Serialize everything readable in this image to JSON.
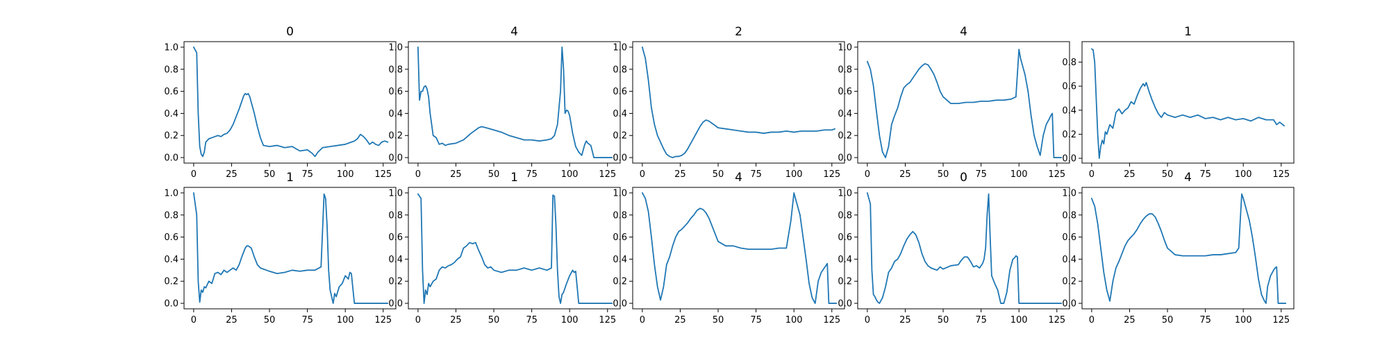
{
  "line_color": "#1f77b4",
  "chart_data": [
    {
      "type": "line",
      "title": "0",
      "xlim": [
        -6.35,
        133.35
      ],
      "ylim": [
        -0.05,
        1.05
      ],
      "xticks": [
        0,
        25,
        50,
        75,
        100,
        125
      ],
      "yticks": [
        0.0,
        0.2,
        0.4,
        0.6,
        0.8,
        1.0
      ],
      "x": [
        0,
        2,
        3,
        4,
        5,
        6,
        7,
        8,
        10,
        12,
        14,
        16,
        18,
        20,
        22,
        24,
        26,
        28,
        30,
        32,
        33,
        34,
        35,
        36,
        37,
        38,
        40,
        42,
        44,
        46,
        50,
        55,
        60,
        65,
        70,
        75,
        78,
        80,
        82,
        85,
        90,
        95,
        100,
        104,
        106,
        108,
        110,
        112,
        114,
        116,
        118,
        120,
        122,
        124,
        126,
        128
      ],
      "y": [
        1.0,
        0.95,
        0.4,
        0.1,
        0.03,
        0.01,
        0.05,
        0.14,
        0.17,
        0.18,
        0.19,
        0.2,
        0.19,
        0.21,
        0.22,
        0.25,
        0.3,
        0.37,
        0.44,
        0.52,
        0.56,
        0.58,
        0.57,
        0.58,
        0.55,
        0.5,
        0.4,
        0.28,
        0.18,
        0.11,
        0.1,
        0.11,
        0.09,
        0.1,
        0.06,
        0.07,
        0.04,
        0.01,
        0.05,
        0.09,
        0.1,
        0.11,
        0.12,
        0.14,
        0.15,
        0.17,
        0.21,
        0.19,
        0.16,
        0.12,
        0.14,
        0.12,
        0.11,
        0.14,
        0.15,
        0.14
      ]
    },
    {
      "type": "line",
      "title": "4",
      "xlim": [
        -6.35,
        133.35
      ],
      "ylim": [
        -0.05,
        1.05
      ],
      "xticks": [
        0,
        25,
        50,
        75,
        100,
        125
      ],
      "yticks": [
        0.0,
        0.2,
        0.4,
        0.6,
        0.8,
        1.0
      ],
      "x": [
        0,
        1,
        2,
        3,
        4,
        5,
        6,
        7,
        8,
        10,
        12,
        14,
        16,
        18,
        20,
        25,
        30,
        35,
        40,
        42,
        45,
        50,
        55,
        60,
        65,
        70,
        75,
        80,
        85,
        88,
        90,
        92,
        94,
        95,
        96,
        97,
        98,
        99,
        100,
        101,
        102,
        104,
        106,
        108,
        110,
        111,
        112,
        113,
        114,
        116,
        118,
        120,
        122,
        124,
        126,
        128
      ],
      "y": [
        1.0,
        0.52,
        0.6,
        0.6,
        0.64,
        0.65,
        0.62,
        0.55,
        0.4,
        0.2,
        0.18,
        0.12,
        0.13,
        0.11,
        0.12,
        0.13,
        0.16,
        0.22,
        0.27,
        0.28,
        0.27,
        0.25,
        0.23,
        0.2,
        0.18,
        0.16,
        0.16,
        0.15,
        0.16,
        0.17,
        0.2,
        0.3,
        0.6,
        1.0,
        0.8,
        0.4,
        0.43,
        0.42,
        0.38,
        0.3,
        0.22,
        0.1,
        0.05,
        0.02,
        0.12,
        0.15,
        0.13,
        0.12,
        0.11,
        0.0,
        0.0,
        0.0,
        0.0,
        0.0,
        0.0,
        0.0
      ]
    },
    {
      "type": "line",
      "title": "2",
      "xlim": [
        -6.35,
        133.35
      ],
      "ylim": [
        -0.05,
        1.05
      ],
      "xticks": [
        0,
        25,
        50,
        75,
        100,
        125
      ],
      "yticks": [
        0.0,
        0.2,
        0.4,
        0.6,
        0.8,
        1.0
      ],
      "x": [
        0,
        2,
        4,
        6,
        8,
        10,
        12,
        14,
        16,
        18,
        20,
        22,
        24,
        26,
        28,
        30,
        32,
        34,
        36,
        38,
        40,
        42,
        44,
        46,
        48,
        50,
        55,
        60,
        65,
        70,
        75,
        80,
        85,
        90,
        95,
        100,
        105,
        110,
        115,
        120,
        125,
        127
      ],
      "y": [
        1.0,
        0.9,
        0.7,
        0.45,
        0.3,
        0.2,
        0.14,
        0.08,
        0.03,
        0.01,
        0.0,
        0.01,
        0.01,
        0.02,
        0.04,
        0.08,
        0.13,
        0.18,
        0.23,
        0.28,
        0.32,
        0.34,
        0.33,
        0.31,
        0.29,
        0.27,
        0.26,
        0.25,
        0.24,
        0.23,
        0.23,
        0.22,
        0.23,
        0.23,
        0.24,
        0.23,
        0.24,
        0.24,
        0.24,
        0.25,
        0.25,
        0.26
      ]
    },
    {
      "type": "line",
      "title": "4",
      "xlim": [
        -6.35,
        133.35
      ],
      "ylim": [
        -0.05,
        1.05
      ],
      "xticks": [
        0,
        25,
        50,
        75,
        100,
        125
      ],
      "yticks": [
        0.0,
        0.2,
        0.4,
        0.6,
        0.8,
        1.0
      ],
      "x": [
        0,
        2,
        4,
        6,
        8,
        10,
        12,
        14,
        16,
        18,
        20,
        22,
        24,
        26,
        28,
        30,
        32,
        34,
        36,
        38,
        40,
        42,
        44,
        46,
        48,
        50,
        55,
        60,
        65,
        70,
        75,
        80,
        85,
        90,
        95,
        98,
        100,
        101,
        102,
        104,
        106,
        108,
        110,
        112,
        114,
        116,
        118,
        120,
        121,
        122,
        123,
        124,
        126,
        128
      ],
      "y": [
        0.87,
        0.8,
        0.65,
        0.42,
        0.2,
        0.05,
        0.0,
        0.1,
        0.3,
        0.38,
        0.45,
        0.55,
        0.63,
        0.66,
        0.68,
        0.72,
        0.76,
        0.8,
        0.83,
        0.85,
        0.84,
        0.8,
        0.75,
        0.68,
        0.6,
        0.55,
        0.49,
        0.49,
        0.5,
        0.5,
        0.51,
        0.51,
        0.52,
        0.52,
        0.53,
        0.55,
        0.98,
        0.9,
        0.85,
        0.75,
        0.6,
        0.38,
        0.2,
        0.1,
        0.02,
        0.2,
        0.3,
        0.35,
        0.38,
        0.4,
        0.0,
        0.0,
        0.0,
        0.0
      ]
    },
    {
      "type": "line",
      "title": "1",
      "xlim": [
        -6.35,
        133.35
      ],
      "ylim": [
        -0.04,
        0.97
      ],
      "xticks": [
        0,
        25,
        50,
        75,
        100,
        125
      ],
      "yticks": [
        0.0,
        0.2,
        0.4,
        0.6,
        0.8
      ],
      "x": [
        0,
        1,
        2,
        3,
        4,
        5,
        6,
        7,
        8,
        9,
        10,
        12,
        14,
        16,
        18,
        20,
        22,
        24,
        26,
        28,
        30,
        32,
        34,
        35,
        36,
        38,
        40,
        42,
        44,
        46,
        48,
        50,
        55,
        60,
        65,
        70,
        75,
        80,
        85,
        90,
        95,
        100,
        105,
        110,
        115,
        120,
        122,
        124,
        126,
        127
      ],
      "y": [
        0.91,
        0.9,
        0.8,
        0.5,
        0.2,
        0.0,
        0.1,
        0.15,
        0.12,
        0.22,
        0.2,
        0.28,
        0.25,
        0.38,
        0.41,
        0.37,
        0.4,
        0.42,
        0.47,
        0.45,
        0.52,
        0.58,
        0.62,
        0.6,
        0.63,
        0.55,
        0.48,
        0.42,
        0.37,
        0.34,
        0.38,
        0.36,
        0.34,
        0.36,
        0.34,
        0.36,
        0.33,
        0.34,
        0.32,
        0.34,
        0.32,
        0.33,
        0.31,
        0.34,
        0.32,
        0.32,
        0.28,
        0.3,
        0.28,
        0.27
      ]
    },
    {
      "type": "line",
      "title": "1",
      "xlim": [
        -6.35,
        133.35
      ],
      "ylim": [
        -0.05,
        1.05
      ],
      "xticks": [
        0,
        25,
        50,
        75,
        100,
        125
      ],
      "yticks": [
        0.0,
        0.2,
        0.4,
        0.6,
        0.8,
        1.0
      ],
      "x": [
        0,
        2,
        3,
        4,
        5,
        6,
        7,
        8,
        10,
        12,
        14,
        16,
        18,
        20,
        22,
        24,
        26,
        28,
        30,
        32,
        34,
        35,
        36,
        38,
        40,
        42,
        44,
        46,
        48,
        50,
        55,
        60,
        65,
        70,
        75,
        80,
        84,
        86,
        87,
        88,
        89,
        90,
        92,
        93,
        94,
        96,
        98,
        100,
        102,
        103,
        104,
        106,
        110,
        115,
        120,
        125,
        128
      ],
      "y": [
        1.0,
        0.8,
        0.2,
        0.01,
        0.12,
        0.1,
        0.15,
        0.14,
        0.2,
        0.18,
        0.27,
        0.28,
        0.26,
        0.3,
        0.28,
        0.3,
        0.32,
        0.3,
        0.35,
        0.43,
        0.5,
        0.52,
        0.52,
        0.5,
        0.42,
        0.35,
        0.32,
        0.31,
        0.3,
        0.29,
        0.27,
        0.28,
        0.3,
        0.29,
        0.3,
        0.3,
        0.33,
        0.99,
        0.95,
        0.7,
        0.3,
        0.12,
        0.0,
        0.09,
        0.06,
        0.15,
        0.18,
        0.25,
        0.22,
        0.28,
        0.27,
        0.0,
        0.0,
        0.0,
        0.0,
        0.0,
        0.0
      ]
    },
    {
      "type": "line",
      "title": "1",
      "xlim": [
        -6.35,
        133.35
      ],
      "ylim": [
        -0.05,
        1.05
      ],
      "xticks": [
        0,
        25,
        50,
        75,
        100,
        125
      ],
      "yticks": [
        0.0,
        0.2,
        0.4,
        0.6,
        0.8,
        1.0
      ],
      "x": [
        0,
        2,
        3,
        4,
        5,
        6,
        7,
        8,
        10,
        12,
        14,
        16,
        18,
        20,
        22,
        24,
        26,
        28,
        30,
        32,
        34,
        36,
        38,
        40,
        42,
        44,
        46,
        48,
        50,
        55,
        60,
        65,
        70,
        75,
        80,
        85,
        88,
        89,
        90,
        91,
        92,
        93,
        94,
        95,
        96,
        98,
        100,
        102,
        103,
        104,
        106,
        110,
        115,
        120,
        125,
        128
      ],
      "y": [
        0.99,
        0.95,
        0.3,
        0.0,
        0.12,
        0.08,
        0.18,
        0.15,
        0.2,
        0.22,
        0.3,
        0.33,
        0.32,
        0.34,
        0.35,
        0.37,
        0.4,
        0.42,
        0.5,
        0.52,
        0.55,
        0.54,
        0.55,
        0.48,
        0.42,
        0.35,
        0.32,
        0.33,
        0.3,
        0.28,
        0.3,
        0.3,
        0.32,
        0.3,
        0.32,
        0.3,
        0.32,
        0.98,
        0.97,
        0.7,
        0.3,
        0.06,
        0.0,
        0.08,
        0.1,
        0.18,
        0.25,
        0.3,
        0.28,
        0.29,
        0.0,
        0.0,
        0.0,
        0.0,
        0.0,
        0.0
      ]
    },
    {
      "type": "line",
      "title": "4",
      "xlim": [
        -6.35,
        133.35
      ],
      "ylim": [
        -0.05,
        1.05
      ],
      "xticks": [
        0,
        25,
        50,
        75,
        100,
        125
      ],
      "yticks": [
        0.0,
        0.2,
        0.4,
        0.6,
        0.8,
        1.0
      ],
      "x": [
        0,
        2,
        4,
        6,
        8,
        10,
        12,
        14,
        16,
        18,
        20,
        22,
        24,
        26,
        28,
        30,
        32,
        34,
        36,
        38,
        40,
        42,
        44,
        46,
        48,
        50,
        55,
        60,
        65,
        70,
        75,
        80,
        85,
        90,
        95,
        98,
        100,
        102,
        104,
        106,
        108,
        110,
        112,
        114,
        116,
        118,
        120,
        121,
        122,
        123,
        124,
        126,
        128
      ],
      "y": [
        1.0,
        0.95,
        0.83,
        0.6,
        0.35,
        0.15,
        0.03,
        0.15,
        0.35,
        0.42,
        0.52,
        0.6,
        0.65,
        0.67,
        0.7,
        0.73,
        0.77,
        0.8,
        0.84,
        0.86,
        0.85,
        0.82,
        0.77,
        0.7,
        0.63,
        0.56,
        0.52,
        0.52,
        0.5,
        0.49,
        0.49,
        0.49,
        0.49,
        0.5,
        0.5,
        0.75,
        1.0,
        0.9,
        0.8,
        0.6,
        0.4,
        0.18,
        0.05,
        0.0,
        0.2,
        0.28,
        0.32,
        0.34,
        0.36,
        0.0,
        0.0,
        0.0,
        0.0
      ]
    },
    {
      "type": "line",
      "title": "0",
      "xlim": [
        -6.35,
        133.35
      ],
      "ylim": [
        -0.05,
        1.05
      ],
      "xticks": [
        0,
        25,
        50,
        75,
        100,
        125
      ],
      "yticks": [
        0.0,
        0.2,
        0.4,
        0.6,
        0.8,
        1.0
      ],
      "x": [
        0,
        2,
        3,
        4,
        5,
        6,
        7,
        8,
        10,
        12,
        14,
        16,
        18,
        20,
        22,
        24,
        26,
        28,
        30,
        32,
        34,
        36,
        38,
        40,
        42,
        44,
        46,
        48,
        50,
        55,
        60,
        62,
        64,
        66,
        68,
        70,
        72,
        74,
        76,
        77,
        78,
        79,
        80,
        81,
        82,
        84,
        86,
        88,
        90,
        92,
        94,
        96,
        97,
        98,
        99,
        100,
        105,
        110,
        115,
        120,
        125,
        128
      ],
      "y": [
        1.0,
        0.9,
        0.3,
        0.08,
        0.06,
        0.03,
        0.01,
        0.0,
        0.05,
        0.15,
        0.28,
        0.32,
        0.38,
        0.4,
        0.45,
        0.52,
        0.58,
        0.62,
        0.65,
        0.62,
        0.55,
        0.45,
        0.38,
        0.34,
        0.32,
        0.31,
        0.3,
        0.33,
        0.31,
        0.34,
        0.35,
        0.39,
        0.42,
        0.42,
        0.38,
        0.33,
        0.34,
        0.32,
        0.36,
        0.4,
        0.5,
        0.8,
        0.99,
        0.6,
        0.25,
        0.18,
        0.12,
        0.0,
        0.0,
        0.1,
        0.3,
        0.4,
        0.41,
        0.43,
        0.42,
        0.0,
        0.0,
        0.0,
        0.0,
        0.0,
        0.0,
        0.0
      ]
    },
    {
      "type": "line",
      "title": "4",
      "xlim": [
        -6.35,
        133.35
      ],
      "ylim": [
        -0.05,
        1.05
      ],
      "xticks": [
        0,
        25,
        50,
        75,
        100,
        125
      ],
      "yticks": [
        0.0,
        0.2,
        0.4,
        0.6,
        0.8,
        1.0
      ],
      "x": [
        0,
        2,
        4,
        6,
        8,
        10,
        12,
        14,
        16,
        18,
        20,
        22,
        24,
        26,
        28,
        30,
        32,
        34,
        36,
        38,
        40,
        42,
        44,
        46,
        48,
        50,
        55,
        60,
        65,
        70,
        75,
        80,
        85,
        90,
        95,
        97,
        98,
        99,
        100,
        102,
        104,
        106,
        108,
        110,
        112,
        114,
        115,
        116,
        118,
        120,
        121,
        122,
        123,
        124,
        126,
        128
      ],
      "y": [
        0.95,
        0.88,
        0.72,
        0.5,
        0.28,
        0.12,
        0.02,
        0.2,
        0.32,
        0.38,
        0.45,
        0.52,
        0.57,
        0.6,
        0.63,
        0.67,
        0.72,
        0.76,
        0.79,
        0.81,
        0.81,
        0.78,
        0.72,
        0.65,
        0.57,
        0.5,
        0.44,
        0.43,
        0.43,
        0.43,
        0.43,
        0.44,
        0.44,
        0.45,
        0.46,
        0.5,
        0.75,
        0.99,
        0.95,
        0.85,
        0.75,
        0.6,
        0.42,
        0.22,
        0.08,
        0.02,
        0.0,
        0.15,
        0.25,
        0.3,
        0.32,
        0.33,
        0.0,
        0.0,
        0.0,
        0.0
      ]
    }
  ]
}
